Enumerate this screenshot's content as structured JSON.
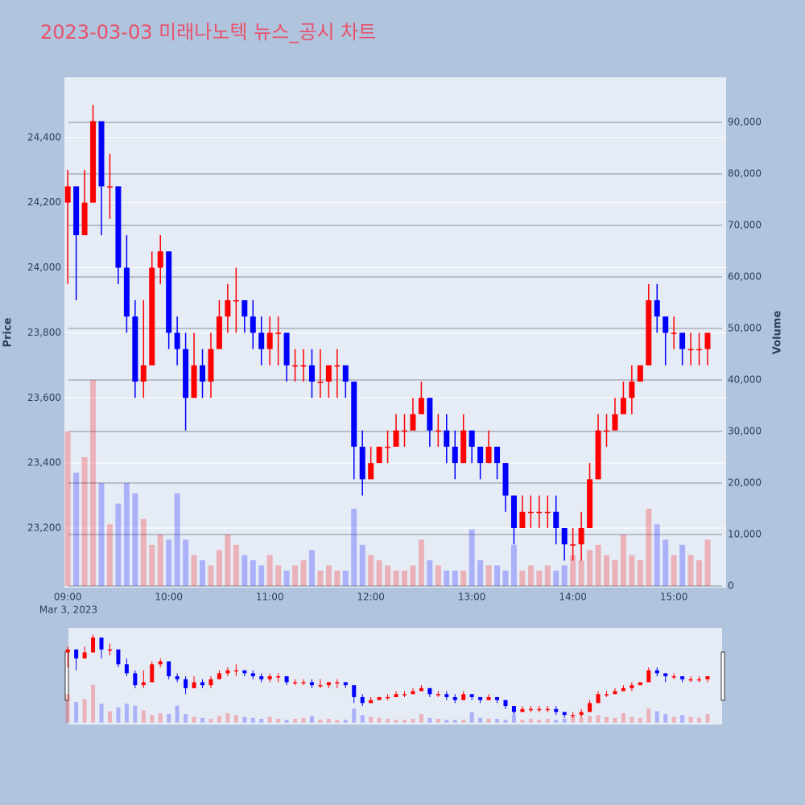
{
  "chart_data": {
    "type": "candlestick",
    "title": "2023-03-03 미래나노텍 뉴스_공시 차트",
    "y_axis_label": "Price",
    "y2_axis_label": "Volume",
    "x_date_label": "Mar 3, 2023",
    "increasing_color": "#ff0000",
    "decreasing_color": "#0000ff",
    "x": [
      "09:00",
      "09:05",
      "09:10",
      "09:15",
      "09:20",
      "09:25",
      "09:30",
      "09:35",
      "09:40",
      "09:45",
      "09:50",
      "09:55",
      "10:00",
      "10:05",
      "10:10",
      "10:15",
      "10:20",
      "10:25",
      "10:30",
      "10:35",
      "10:40",
      "10:45",
      "10:50",
      "10:55",
      "11:00",
      "11:05",
      "11:10",
      "11:15",
      "11:20",
      "11:25",
      "11:30",
      "11:35",
      "11:40",
      "11:45",
      "11:50",
      "11:55",
      "12:00",
      "12:05",
      "12:10",
      "12:15",
      "12:20",
      "12:25",
      "12:30",
      "12:35",
      "12:40",
      "12:45",
      "12:50",
      "12:55",
      "13:00",
      "13:05",
      "13:10",
      "13:15",
      "13:20",
      "13:25",
      "13:30",
      "13:35",
      "13:40",
      "13:45",
      "13:50",
      "13:55",
      "14:00",
      "14:05",
      "14:10",
      "14:15",
      "14:20",
      "14:25",
      "14:30",
      "14:35",
      "14:40",
      "14:45",
      "14:50",
      "14:55",
      "15:00",
      "15:05",
      "15:10",
      "15:15",
      "15:20"
    ],
    "open": [
      24200,
      24250,
      24100,
      24200,
      24450,
      24250,
      24250,
      24000,
      23850,
      23650,
      23700,
      24000,
      24050,
      23800,
      23750,
      23600,
      23700,
      23650,
      23750,
      23850,
      23900,
      23900,
      23850,
      23800,
      23750,
      23800,
      23800,
      23700,
      23700,
      23700,
      23650,
      23650,
      23700,
      23700,
      23650,
      23450,
      23350,
      23400,
      23450,
      23450,
      23500,
      23500,
      23550,
      23600,
      23500,
      23500,
      23450,
      23400,
      23500,
      23450,
      23400,
      23450,
      23400,
      23300,
      23200,
      23250,
      23250,
      23250,
      23250,
      23200,
      23150,
      23150,
      23200,
      23350,
      23500,
      23500,
      23550,
      23600,
      23650,
      23700,
      23900,
      23850,
      23800,
      23800,
      23750,
      23750,
      23750
    ],
    "high": [
      24300,
      24250,
      24300,
      24500,
      24450,
      24350,
      24250,
      24100,
      23900,
      23900,
      24050,
      24100,
      24050,
      23850,
      23800,
      23800,
      23750,
      23800,
      23900,
      23950,
      24000,
      23900,
      23900,
      23850,
      23850,
      23850,
      23800,
      23750,
      23750,
      23750,
      23750,
      23700,
      23750,
      23700,
      23650,
      23500,
      23450,
      23450,
      23500,
      23550,
      23550,
      23600,
      23650,
      23600,
      23550,
      23550,
      23500,
      23550,
      23500,
      23450,
      23500,
      23450,
      23400,
      23300,
      23300,
      23300,
      23300,
      23300,
      23300,
      23200,
      23200,
      23250,
      23400,
      23550,
      23550,
      23600,
      23650,
      23700,
      23700,
      23950,
      23950,
      23850,
      23850,
      23800,
      23800,
      23800,
      23800
    ],
    "low": [
      23950,
      23900,
      24100,
      24200,
      24100,
      24150,
      23950,
      23800,
      23600,
      23600,
      23700,
      23950,
      23750,
      23700,
      23500,
      23600,
      23600,
      23600,
      23750,
      23800,
      23800,
      23800,
      23750,
      23700,
      23700,
      23700,
      23650,
      23650,
      23650,
      23600,
      23600,
      23600,
      23600,
      23600,
      23350,
      23300,
      23350,
      23400,
      23400,
      23450,
      23450,
      23500,
      23550,
      23450,
      23450,
      23400,
      23350,
      23400,
      23400,
      23350,
      23400,
      23350,
      23250,
      23150,
      23200,
      23200,
      23200,
      23200,
      23150,
      23100,
      23100,
      23100,
      23200,
      23350,
      23450,
      23500,
      23550,
      23550,
      23650,
      23700,
      23800,
      23700,
      23750,
      23700,
      23700,
      23700,
      23700
    ],
    "close": [
      24250,
      24100,
      24200,
      24450,
      24250,
      24250,
      24000,
      23850,
      23650,
      23700,
      24000,
      24050,
      23800,
      23750,
      23600,
      23700,
      23650,
      23750,
      23850,
      23900,
      23900,
      23850,
      23800,
      23750,
      23800,
      23800,
      23700,
      23700,
      23700,
      23650,
      23650,
      23700,
      23700,
      23650,
      23450,
      23350,
      23400,
      23450,
      23450,
      23500,
      23500,
      23550,
      23600,
      23500,
      23500,
      23450,
      23400,
      23500,
      23450,
      23400,
      23450,
      23400,
      23300,
      23200,
      23250,
      23250,
      23250,
      23250,
      23200,
      23150,
      23150,
      23200,
      23350,
      23500,
      23500,
      23550,
      23600,
      23650,
      23700,
      23900,
      23850,
      23800,
      23800,
      23750,
      23750,
      23750,
      23800
    ],
    "volume": [
      30000,
      22000,
      25000,
      40000,
      20000,
      12000,
      16000,
      20000,
      18000,
      13000,
      8000,
      10000,
      9000,
      18000,
      9000,
      6000,
      5000,
      4000,
      7000,
      10000,
      8000,
      6000,
      5000,
      4000,
      6000,
      4000,
      3000,
      4000,
      5000,
      7000,
      3000,
      4000,
      3000,
      3000,
      15000,
      8000,
      6000,
      5000,
      4000,
      3000,
      3000,
      4000,
      9000,
      5000,
      4000,
      3000,
      3000,
      3000,
      11000,
      5000,
      4000,
      4000,
      3000,
      8000,
      3000,
      4000,
      3000,
      4000,
      3000,
      4000,
      6000,
      5000,
      7000,
      8000,
      6000,
      5000,
      10000,
      6000,
      5000,
      15000,
      12000,
      9000,
      6000,
      8000,
      6000,
      5000,
      9000
    ],
    "xlim": [
      "08:58",
      "15:31"
    ],
    "xticks": [
      "09:00",
      "10:00",
      "11:00",
      "12:00",
      "13:00",
      "14:00",
      "15:00"
    ],
    "ylim": [
      23017,
      24585
    ],
    "yticks": [
      {
        "value": 23200,
        "label": "23,200"
      },
      {
        "value": 23400,
        "label": "23,400"
      },
      {
        "value": 23600,
        "label": "23,600"
      },
      {
        "value": 23800,
        "label": "23,800"
      },
      {
        "value": 24000,
        "label": "24,000"
      },
      {
        "value": 24200,
        "label": "24,200"
      },
      {
        "value": 24400,
        "label": "24,400"
      }
    ],
    "y2lim": [
      -312,
      98750
    ],
    "y2ticks": [
      0,
      {
        "value": 10000,
        "label": "10,000"
      },
      {
        "value": 20000,
        "label": "20,000"
      },
      {
        "value": 30000,
        "label": "30,000"
      },
      {
        "value": 40000,
        "label": "40,000"
      },
      {
        "value": 50000,
        "label": "50,000"
      },
      {
        "value": 60000,
        "label": "60,000"
      },
      {
        "value": 70000,
        "label": "70,000"
      },
      {
        "value": 80000,
        "label": "80,000"
      },
      {
        "value": 90000,
        "label": "90,000"
      }
    ],
    "grid": true,
    "range_slider": true
  }
}
